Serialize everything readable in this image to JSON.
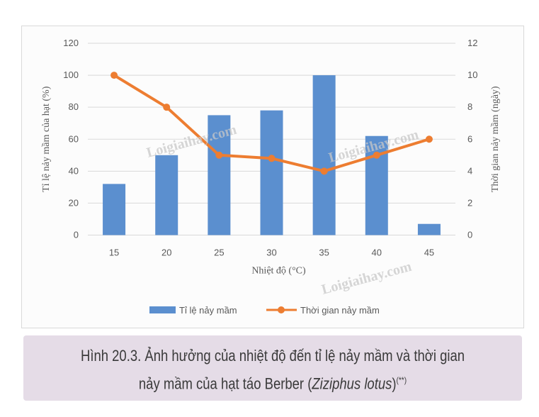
{
  "chart_data": {
    "type": "bar+line",
    "categories": [
      "15",
      "20",
      "25",
      "30",
      "35",
      "40",
      "45"
    ],
    "xlabel": "Nhiệt độ (°C)",
    "ylabel_left": "Tỉ lệ nảy mầm của hạt (%)",
    "ylabel_right": "Thời gian nảy mầm (ngày)",
    "ylim_left": [
      0,
      120
    ],
    "ylim_right": [
      0,
      12
    ],
    "yticks_left": [
      "0",
      "20",
      "40",
      "60",
      "80",
      "100",
      "120"
    ],
    "yticks_right": [
      "0",
      "2",
      "4",
      "6",
      "8",
      "10",
      "12"
    ],
    "grid": true,
    "legend_position": "bottom",
    "series": [
      {
        "name": "Tỉ lệ nảy mầm",
        "type": "bar",
        "axis": "left",
        "color": "#5b8fcf",
        "values": [
          32,
          50,
          75,
          78,
          100,
          62,
          7
        ]
      },
      {
        "name": "Thời gian nảy mầm",
        "type": "line",
        "axis": "right",
        "color": "#ed7d31",
        "values": [
          10,
          8,
          5,
          4.8,
          4,
          5,
          6
        ]
      }
    ]
  },
  "watermark": "Loigiaihay.com",
  "caption": {
    "line1": "Hình 20.3. Ảnh hưởng của nhiệt độ đến tỉ lệ nảy mầm và thời gian",
    "line2_pre": "nảy mầm của hạt táo Berber (",
    "line2_italic": "Ziziphus lotus",
    "line2_post": ")",
    "sup": "(**)"
  }
}
